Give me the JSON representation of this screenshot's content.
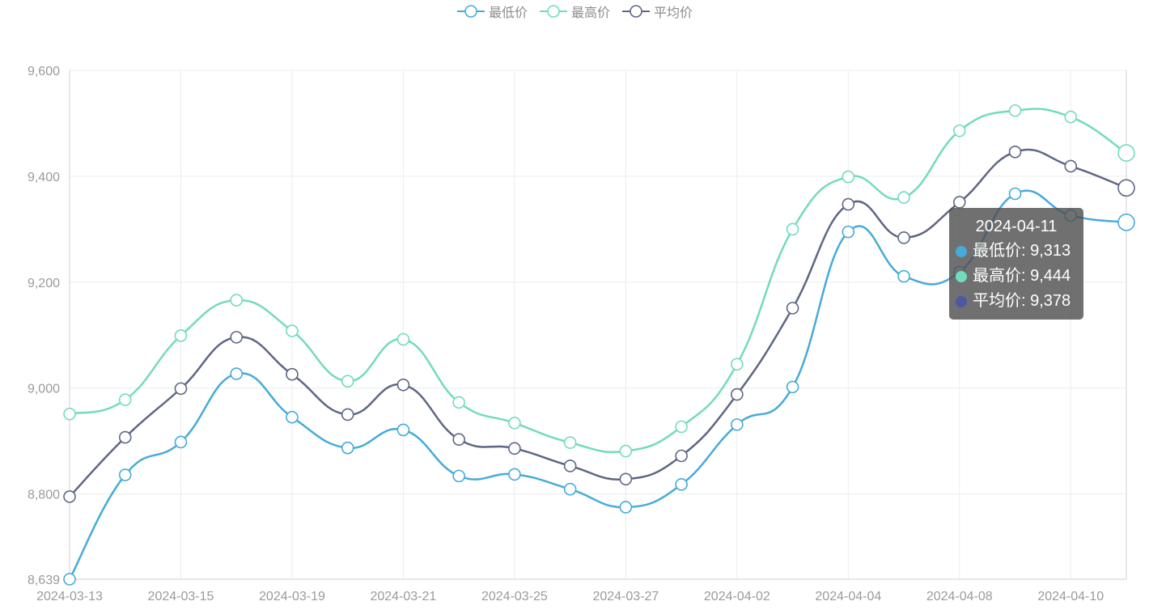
{
  "legend": {
    "items": [
      {
        "name": "最低价",
        "color": "#45abd9"
      },
      {
        "name": "最高价",
        "color": "#72dbbd"
      },
      {
        "name": "平均价",
        "color": "#5e6685"
      }
    ]
  },
  "tooltip": {
    "title": "2024-04-11",
    "rows": [
      {
        "label": "最低价: 9,313",
        "color": "#45abd9"
      },
      {
        "label": "最高价: 9,444",
        "color": "#72dbbd"
      },
      {
        "label": "平均价: 9,378",
        "color": "#5e6685"
      }
    ]
  },
  "chart_data": {
    "type": "line",
    "smooth": true,
    "x": [
      "2024-03-13",
      "2024-03-14",
      "2024-03-15",
      "2024-03-18",
      "2024-03-19",
      "2024-03-20",
      "2024-03-21",
      "2024-03-22",
      "2024-03-25",
      "2024-03-26",
      "2024-03-27",
      "2024-03-28",
      "2024-04-02",
      "2024-04-03",
      "2024-04-04",
      "2024-04-07",
      "2024-04-08",
      "2024-04-09",
      "2024-04-10",
      "2024-04-11"
    ],
    "x_tick_labels": [
      "2024-03-13",
      "2024-03-15",
      "2024-03-19",
      "2024-03-21",
      "2024-03-25",
      "2024-03-27",
      "2024-04-02",
      "2024-04-04",
      "2024-04-08",
      "2024-04-10"
    ],
    "y_tick_labels": [
      "8,639",
      "8,800",
      "9,000",
      "9,200",
      "9,400",
      "9,600"
    ],
    "ylim": [
      8639,
      9600
    ],
    "y_ticks": [
      8800,
      9000,
      9200,
      9400,
      9600
    ],
    "grid": true,
    "legend_position": "top-center",
    "series": [
      {
        "name": "最低价",
        "color": "#45abd9",
        "values": [
          8639,
          8836,
          8898,
          9027,
          8945,
          8887,
          8921,
          8834,
          8837,
          8809,
          8775,
          8818,
          8931,
          9002,
          9295,
          9211,
          9219,
          9367,
          9326,
          9313
        ]
      },
      {
        "name": "最高价",
        "color": "#72dbbd",
        "values": [
          8951,
          8978,
          9099,
          9166,
          9108,
          9013,
          9092,
          8973,
          8934,
          8897,
          8881,
          8927,
          9045,
          9300,
          9399,
          9360,
          9486,
          9524,
          9512,
          9444
        ]
      },
      {
        "name": "平均价",
        "color": "#5e6685",
        "values": [
          8795,
          8907,
          8999,
          9096,
          9026,
          8950,
          9006,
          8903,
          8886,
          8853,
          8828,
          8872,
          8988,
          9151,
          9347,
          9284,
          9351,
          9446,
          9419,
          9378
        ]
      }
    ]
  }
}
